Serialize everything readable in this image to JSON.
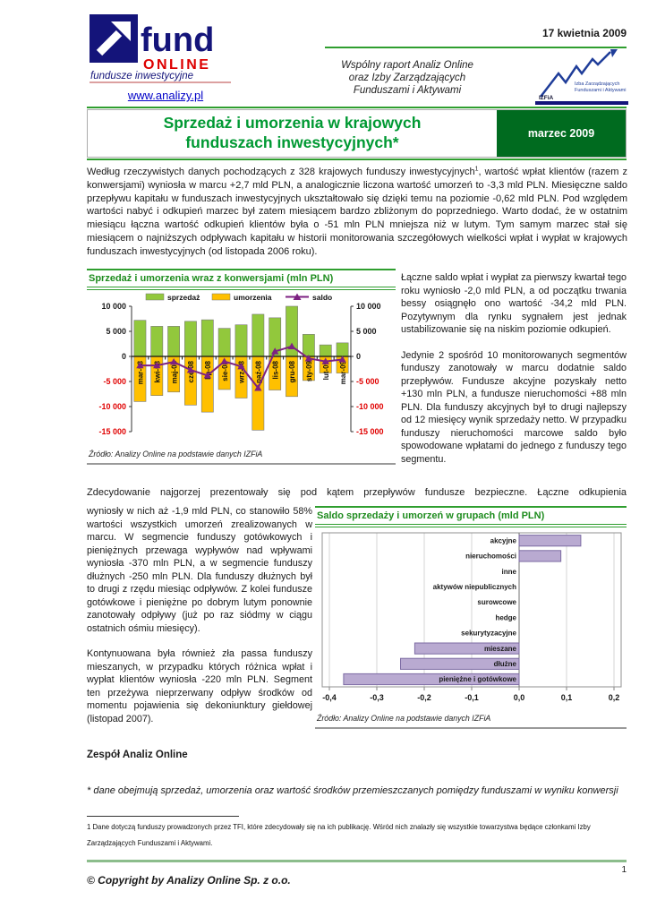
{
  "header": {
    "logo": {
      "brand_top": "fund",
      "brand_bottom": "ONLINE",
      "tagline": "fundusze inwestycyjne",
      "link": "www.analizy.pl"
    },
    "date": "17 kwietnia 2009",
    "center_lines": [
      "Wspólny raport Analiz Online",
      "oraz Izby Zarządzających",
      "Funduszami i Aktywami"
    ],
    "izfia": {
      "caption_line1": "Izba Zarządzających",
      "caption_line2": "Funduszami i Aktywami",
      "abbr": "IZFiA"
    }
  },
  "title": {
    "text": "Sprzedaż i umorzenia w krajowych funduszach inwestycyjnych*",
    "badge": "marzec 2009"
  },
  "intro": {
    "p1a": "Według rzeczywistych danych pochodzących z 328 krajowych funduszy inwestycyjnych",
    "sup": "1",
    "p1b": ", wartość wpłat klientów (razem z konwersjami) wyniosła w marcu +2,7 mld PLN, a analogicznie liczona wartość umorzeń to -3,3 mld PLN. Miesięczne saldo przepływu kapitału w funduszach inwestycyjnych ukształtowało się dzięki temu na poziomie -0,62 mld PLN. Pod względem wartości nabyć i odkupień marzec był zatem miesiącem bardzo zbliżonym do poprzedniego. Warto dodać, że w ostatnim miesiącu łączna wartość odkupień klientów była o -51 mln PLN mniejsza niż w lutym. Tym samym marzec stał się miesiącem o najniższych odpływach kapitału w historii monitorowania szczegółowych wielkości wpłat i wypłat w krajowych funduszach inwestycyjnych (od listopada 2006 roku)."
  },
  "right_column": {
    "p1": "Łączne saldo wpłat i wypłat za pierwszy kwartał tego roku wyniosło -2,0 mld PLN, a od początku trwania bessy osiągnęło ono wartość -34,2 mld PLN. Pozytywnym dla rynku sygnałem jest jednak ustabilizowanie się na niskim poziomie odkupień.",
    "p2": "Jedynie 2 spośród 10 monitorowanych segmentów funduszy zanotowały w marcu dodatnie saldo przepływów. Fundusze akcyjne pozyskały netto +130 mln PLN, a fundusze nieruchomości +88 mln PLN. Dla funduszy akcyjnych był to drugi najlepszy od 12 miesięcy wynik sprzedaży netto. W przypadku funduszy nieruchomości marcowe saldo było spowodowane wpłatami do jednego z funduszy tego segmentu."
  },
  "left_column": {
    "lead": "Zdecydowanie najgorzej prezentowały się pod kątem przepływów fundusze bezpieczne. Łączne odkupienia",
    "p1": "wyniosły w nich aż -1,9 mld PLN, co stanowiło 58% wartości wszystkich umorzeń zrealizowanych w marcu. W segmencie funduszy gotówkowych i pieniężnych przewaga wypływów nad wpływami wyniosła -370 mln PLN, a w segmencie funduszy dłużnych -250 mln PLN. Dla funduszy dłużnych był to drugi z rzędu miesiąc odpływów. Z kolei fundusze gotówkowe i pieniężne po dobrym lutym ponownie zanotowały odpływy (już po raz siódmy w ciągu ostatnich ośmiu miesięcy).",
    "p2": "Kontynuowana była również zła passa funduszy mieszanych, w przypadku których różnica wpłat i wypłat klientów wyniosła -220 mln PLN. Segment ten przeżywa nieprzerwany odpływ środków od momentu pojawienia się dekoniunktury giełdowej (listopad 2007).",
    "signature": "Zespół Analiz Online"
  },
  "footnotes": {
    "asterisk": "* dane obejmują sprzedaż, umorzenia oraz wartość środków przemieszczanych pomiędzy funduszami w wyniku konwersji",
    "note1": "1 Dane dotyczą funduszy prowadzonych przez TFI, które zdecydowały się na ich publikację. Wśród nich znalazły się wszystkie towarzystwa będące członkami Izby Zarządzających Funduszami i Aktywami."
  },
  "footer": {
    "copyright": "© Copyright by Analizy Online Sp. z o.o.",
    "page": "1"
  },
  "chart_data": [
    {
      "type": "bar",
      "title": "Sprzedaż i umorzenia wraz z konwersjami (mln PLN)",
      "source": "Źródło: Analizy Online na podstawie danych IZFiA",
      "categories": [
        "mar-08",
        "kwi-08",
        "maj-08",
        "cze-08",
        "lip-08",
        "sie-08",
        "wrz-08",
        "paź-08",
        "lis-08",
        "gru-08",
        "sty-09",
        "lut-09",
        "mar-09"
      ],
      "series": [
        {
          "name": "sprzedaż",
          "type": "bar",
          "color": "#92c83c",
          "values": [
            7200,
            6000,
            6000,
            7000,
            7300,
            5600,
            6300,
            8400,
            7700,
            10000,
            4400,
            2300,
            2700
          ]
        },
        {
          "name": "umorzenia",
          "type": "bar",
          "color": "#ffc000",
          "values": [
            -9000,
            -7800,
            -7100,
            -9700,
            -11100,
            -6600,
            -8300,
            -14700,
            -6700,
            -8000,
            -4800,
            -3300,
            -3320
          ]
        },
        {
          "name": "saldo",
          "type": "line",
          "color": "#7d2182",
          "values": [
            -1800,
            -1800,
            -1100,
            -2700,
            -3800,
            -1000,
            -2000,
            -6300,
            1000,
            2000,
            -400,
            -1000,
            -620
          ]
        }
      ],
      "ylim": [
        -15000,
        10000
      ],
      "ytick_step": 5000,
      "legend_position": "top",
      "negative_tick_color": "#e00000"
    },
    {
      "type": "bar_horizontal",
      "title": "Saldo sprzedaży i umorzeń w grupach (mld PLN)",
      "source": "Źródło: Analizy Online na podstawie danych IZFiA",
      "categories": [
        "akcyjne",
        "nieruchomości",
        "inne",
        "aktywów niepublicznych",
        "surowcowe",
        "hedge",
        "sekurytyzacyjne",
        "mieszane",
        "dłużne",
        "pieniężne i gotówkowe"
      ],
      "values": [
        0.13,
        0.088,
        0,
        0,
        0,
        0,
        0,
        -0.22,
        -0.25,
        -0.37
      ],
      "xlim": [
        -0.4,
        0.2
      ],
      "xtick_labels": [
        "-0,4",
        "-0,3",
        "-0,2",
        "-0,1",
        "0,0",
        "0,1",
        "0,2"
      ],
      "bar_color": "#b9aad1",
      "bar_border": "#7c6ba3",
      "grid": true
    }
  ]
}
